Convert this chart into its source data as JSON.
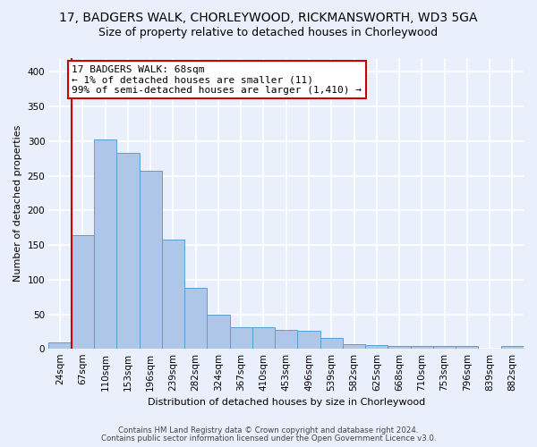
{
  "title": "17, BADGERS WALK, CHORLEYWOOD, RICKMANSWORTH, WD3 5GA",
  "subtitle": "Size of property relative to detached houses in Chorleywood",
  "xlabel": "Distribution of detached houses by size in Chorleywood",
  "ylabel": "Number of detached properties",
  "bins": [
    "24sqm",
    "67sqm",
    "110sqm",
    "153sqm",
    "196sqm",
    "239sqm",
    "282sqm",
    "324sqm",
    "367sqm",
    "410sqm",
    "453sqm",
    "496sqm",
    "539sqm",
    "582sqm",
    "625sqm",
    "668sqm",
    "710sqm",
    "753sqm",
    "796sqm",
    "839sqm",
    "882sqm"
  ],
  "values": [
    10,
    165,
    303,
    283,
    258,
    158,
    88,
    49,
    31,
    31,
    28,
    26,
    16,
    7,
    6,
    5,
    4,
    4,
    5,
    0,
    4
  ],
  "bar_color": "#aec6e8",
  "bar_edge_color": "#5a9fd4",
  "property_line_x": 0.5,
  "property_line_color": "#cc0000",
  "annotation_text": "17 BADGERS WALK: 68sqm\n← 1% of detached houses are smaller (11)\n99% of semi-detached houses are larger (1,410) →",
  "annotation_box_color": "#ffffff",
  "annotation_box_edge_color": "#cc0000",
  "ylim": [
    0,
    420
  ],
  "yticks": [
    0,
    50,
    100,
    150,
    200,
    250,
    300,
    350,
    400
  ],
  "footer_line1": "Contains HM Land Registry data © Crown copyright and database right 2024.",
  "footer_line2": "Contains public sector information licensed under the Open Government Licence v3.0.",
  "bg_color": "#eaf0fb",
  "plot_bg_color": "#eaf0fb",
  "grid_color": "#ffffff",
  "title_fontsize": 10,
  "subtitle_fontsize": 9,
  "label_fontsize": 8,
  "tick_fontsize": 7.5,
  "annotation_fontsize": 8
}
